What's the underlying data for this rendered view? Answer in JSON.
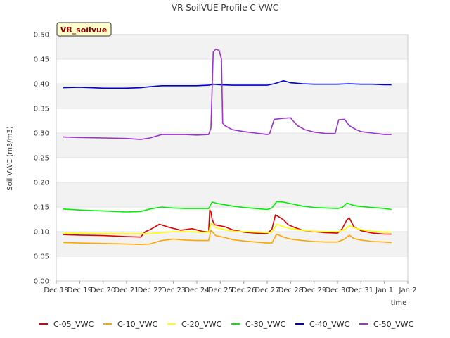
{
  "chart_data": {
    "type": "line",
    "title": "VR SoilVUE Profile C VWC",
    "badge": "VR_soilvue",
    "xlabel": "time",
    "ylabel": "Soil VWC (m3/m3)",
    "ylim": [
      0,
      0.5
    ],
    "yticks": [
      "0.00",
      "0.05",
      "0.10",
      "0.15",
      "0.20",
      "0.25",
      "0.30",
      "0.35",
      "0.40",
      "0.45",
      "0.50"
    ],
    "x_ticks": [
      "Dec 18",
      "Dec 19",
      "Dec 20",
      "Dec 21",
      "Dec 22",
      "Dec 23",
      "Dec 24",
      "Dec 25",
      "Dec 26",
      "Dec 27",
      "Dec 28",
      "Dec 29",
      "Dec 30",
      "Dec 31",
      "Jan 1",
      "Jan 2"
    ],
    "x_unit": "day index (0 = Dec 18)",
    "xlim": [
      0,
      15
    ],
    "grid": "horizontal bands",
    "legend_position": "bottom",
    "series": [
      {
        "name": "C-05_VWC",
        "color": "#dd0000",
        "x": [
          0.3,
          1,
          2,
          3,
          3.6,
          3.8,
          4,
          4.4,
          4.8,
          5.3,
          5.8,
          6.2,
          6.5,
          6.55,
          6.6,
          6.65,
          6.75,
          7.2,
          7.5,
          8,
          8.5,
          9,
          9.2,
          9.35,
          9.5,
          9.7,
          9.9,
          10.2,
          10.5,
          11,
          11.5,
          12,
          12.2,
          12.4,
          12.5,
          12.7,
          13,
          13.5,
          14,
          14.3
        ],
        "y": [
          0.094,
          0.093,
          0.092,
          0.09,
          0.089,
          0.1,
          0.104,
          0.115,
          0.109,
          0.103,
          0.106,
          0.101,
          0.099,
          0.144,
          0.14,
          0.125,
          0.114,
          0.11,
          0.104,
          0.099,
          0.097,
          0.096,
          0.105,
          0.134,
          0.13,
          0.124,
          0.114,
          0.108,
          0.103,
          0.1,
          0.098,
          0.097,
          0.106,
          0.124,
          0.128,
          0.11,
          0.102,
          0.097,
          0.095,
          0.095
        ]
      },
      {
        "name": "C-10_VWC",
        "color": "#ffa500",
        "x": [
          0.3,
          1,
          2,
          3,
          3.6,
          4,
          4.5,
          5,
          5.5,
          6,
          6.5,
          6.6,
          6.8,
          7.2,
          7.5,
          8,
          8.5,
          9,
          9.2,
          9.4,
          9.7,
          10,
          10.5,
          11,
          11.5,
          12,
          12.3,
          12.5,
          12.7,
          13,
          13.5,
          14,
          14.3
        ],
        "y": [
          0.078,
          0.077,
          0.076,
          0.075,
          0.074,
          0.075,
          0.082,
          0.085,
          0.083,
          0.082,
          0.082,
          0.103,
          0.092,
          0.088,
          0.084,
          0.081,
          0.079,
          0.077,
          0.077,
          0.095,
          0.089,
          0.085,
          0.082,
          0.08,
          0.079,
          0.079,
          0.085,
          0.093,
          0.086,
          0.083,
          0.08,
          0.079,
          0.078
        ]
      },
      {
        "name": "C-20_VWC",
        "color": "#ffff00",
        "x": [
          0.3,
          1,
          2,
          3,
          3.6,
          4,
          4.5,
          5,
          5.5,
          6,
          6.5,
          6.6,
          6.8,
          7.2,
          7.5,
          8,
          8.5,
          9,
          9.2,
          9.4,
          9.7,
          10,
          10.5,
          11,
          11.5,
          12,
          12.3,
          12.5,
          12.7,
          13,
          13.5,
          14,
          14.3
        ],
        "y": [
          0.097,
          0.097,
          0.096,
          0.096,
          0.096,
          0.096,
          0.098,
          0.1,
          0.1,
          0.099,
          0.099,
          0.117,
          0.108,
          0.104,
          0.101,
          0.1,
          0.099,
          0.098,
          0.099,
          0.115,
          0.11,
          0.106,
          0.103,
          0.101,
          0.1,
          0.1,
          0.104,
          0.112,
          0.108,
          0.104,
          0.101,
          0.099,
          0.099
        ]
      },
      {
        "name": "C-30_VWC",
        "color": "#00ee00",
        "x": [
          0.3,
          1,
          2,
          3,
          3.6,
          4,
          4.5,
          5,
          5.5,
          6,
          6.5,
          6.65,
          6.9,
          7.5,
          8,
          8.5,
          9,
          9.2,
          9.4,
          9.7,
          10,
          10.5,
          11,
          11.5,
          12,
          12.2,
          12.4,
          12.7,
          13,
          13.5,
          14,
          14.3
        ],
        "y": [
          0.146,
          0.144,
          0.142,
          0.14,
          0.141,
          0.146,
          0.15,
          0.148,
          0.147,
          0.147,
          0.147,
          0.16,
          0.157,
          0.152,
          0.149,
          0.147,
          0.145,
          0.148,
          0.161,
          0.16,
          0.157,
          0.152,
          0.149,
          0.148,
          0.147,
          0.149,
          0.158,
          0.153,
          0.151,
          0.149,
          0.147,
          0.145
        ]
      },
      {
        "name": "C-40_VWC",
        "color": "#0000cc",
        "x": [
          0.3,
          1,
          2,
          3,
          3.6,
          4,
          4.5,
          5,
          5.5,
          6,
          6.5,
          6.7,
          7,
          7.5,
          8,
          8.5,
          9,
          9.3,
          9.7,
          10,
          10.5,
          11,
          11.5,
          12,
          12.5,
          13,
          13.5,
          14,
          14.3
        ],
        "y": [
          0.392,
          0.393,
          0.391,
          0.391,
          0.392,
          0.394,
          0.396,
          0.396,
          0.396,
          0.396,
          0.397,
          0.399,
          0.398,
          0.397,
          0.397,
          0.397,
          0.397,
          0.4,
          0.406,
          0.402,
          0.4,
          0.399,
          0.399,
          0.399,
          0.4,
          0.399,
          0.399,
          0.398,
          0.398
        ]
      },
      {
        "name": "C-50_VWC",
        "color": "#9933cc",
        "x": [
          0.3,
          1,
          2,
          3,
          3.6,
          4,
          4.5,
          5,
          5.5,
          6,
          6.5,
          6.6,
          6.7,
          6.8,
          6.95,
          7.05,
          7.1,
          7.2,
          7.5,
          8,
          8.5,
          9,
          9.1,
          9.3,
          9.7,
          10,
          10.1,
          10.3,
          10.6,
          11,
          11.5,
          11.9,
          12.05,
          12.3,
          12.5,
          12.8,
          13,
          13.5,
          14,
          14.3
        ],
        "y": [
          0.292,
          0.291,
          0.29,
          0.289,
          0.287,
          0.29,
          0.297,
          0.297,
          0.297,
          0.296,
          0.297,
          0.31,
          0.465,
          0.47,
          0.468,
          0.45,
          0.32,
          0.315,
          0.307,
          0.303,
          0.3,
          0.297,
          0.298,
          0.328,
          0.33,
          0.331,
          0.325,
          0.315,
          0.307,
          0.302,
          0.299,
          0.299,
          0.327,
          0.328,
          0.315,
          0.307,
          0.303,
          0.3,
          0.297,
          0.297
        ]
      }
    ]
  }
}
